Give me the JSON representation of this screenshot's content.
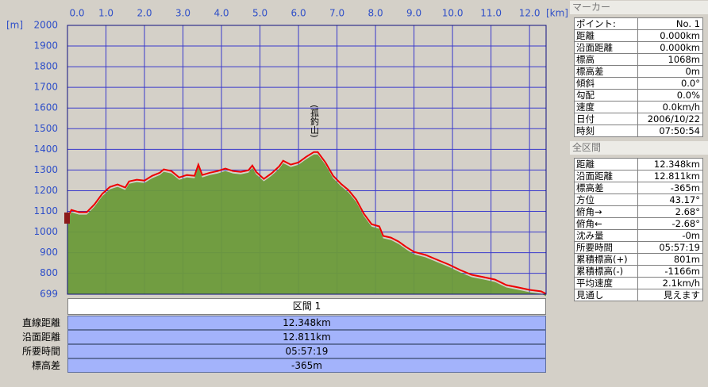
{
  "chart_data": {
    "type": "area",
    "x_unit": "[km]",
    "y_unit": "[m]",
    "x": [
      0,
      0.1,
      0.3,
      0.5,
      0.7,
      0.9,
      1.1,
      1.3,
      1.5,
      1.6,
      1.8,
      2.0,
      2.2,
      2.4,
      2.5,
      2.7,
      2.9,
      3.1,
      3.3,
      3.4,
      3.5,
      3.7,
      3.9,
      4.1,
      4.3,
      4.5,
      4.7,
      4.8,
      4.9,
      5.1,
      5.3,
      5.5,
      5.6,
      5.8,
      6.0,
      6.2,
      6.4,
      6.5,
      6.7,
      6.9,
      7.1,
      7.3,
      7.5,
      7.7,
      7.9,
      8.1,
      8.2,
      8.4,
      8.6,
      8.8,
      9.0,
      9.3,
      9.6,
      9.9,
      10.2,
      10.5,
      10.8,
      11.1,
      11.4,
      11.7,
      12.0,
      12.3,
      12.43
    ],
    "values": [
      1068,
      1107,
      1096,
      1096,
      1134,
      1184,
      1218,
      1230,
      1215,
      1245,
      1253,
      1249,
      1272,
      1287,
      1303,
      1295,
      1264,
      1276,
      1272,
      1326,
      1276,
      1287,
      1295,
      1307,
      1295,
      1291,
      1299,
      1322,
      1291,
      1257,
      1284,
      1318,
      1345,
      1326,
      1337,
      1364,
      1387,
      1387,
      1337,
      1272,
      1234,
      1203,
      1157,
      1088,
      1038,
      1027,
      981,
      973,
      954,
      927,
      904,
      889,
      866,
      843,
      816,
      793,
      782,
      770,
      743,
      732,
      720,
      713,
      701
    ],
    "line_color": "#ee0000",
    "fill_color": "#6b9a3a",
    "xlim": [
      0,
      12.43
    ],
    "ylim": [
      699,
      2000
    ],
    "xticks": [
      {
        "value": 0,
        "label": "0.0"
      },
      {
        "value": 1,
        "label": "1.0"
      },
      {
        "value": 2,
        "label": "2.0"
      },
      {
        "value": 3,
        "label": "3.0"
      },
      {
        "value": 4,
        "label": "4.0"
      },
      {
        "value": 5,
        "label": "5.0"
      },
      {
        "value": 6,
        "label": "6.0"
      },
      {
        "value": 7,
        "label": "7.0"
      },
      {
        "value": 8,
        "label": "8.0"
      },
      {
        "value": 9,
        "label": "9.0"
      },
      {
        "value": 10,
        "label": "10.0"
      },
      {
        "value": 11,
        "label": "11.0"
      },
      {
        "value": 12,
        "label": "12.0"
      }
    ],
    "yticks": [
      699,
      800,
      900,
      1000,
      1100,
      1200,
      1300,
      1400,
      1500,
      1600,
      1700,
      1800,
      1900,
      2000
    ],
    "grid": true,
    "annotations": [
      {
        "text": "(孤釣山)",
        "x": 6.4
      }
    ]
  },
  "segment_table": {
    "header": "区間 1",
    "rows": [
      [
        "直線距離",
        "12.348km"
      ],
      [
        "沿面距離",
        "12.811km"
      ],
      [
        "所要時間",
        "05:57:19"
      ],
      [
        "標高差",
        "-365m"
      ]
    ]
  },
  "marker_panel": {
    "title": "マーカー",
    "rows": [
      [
        "ポイント:",
        "No. 1"
      ],
      [
        "距離",
        "0.000km"
      ],
      [
        "沿面距離",
        "0.000km"
      ],
      [
        "標高",
        "1068m"
      ],
      [
        "標高差",
        "0m"
      ],
      [
        "傾斜",
        "0.0°"
      ],
      [
        "勾配",
        "0.0%"
      ],
      [
        "速度",
        "0.0km/h"
      ],
      [
        "日付",
        "2006/10/22"
      ],
      [
        "時刻",
        "07:50:54"
      ]
    ]
  },
  "summary_panel": {
    "title": "全区間",
    "rows": [
      [
        "距離",
        "12.348km"
      ],
      [
        "沿面距離",
        "12.811km"
      ],
      [
        "標高差",
        "-365m"
      ],
      [
        "方位",
        "43.17°"
      ],
      [
        "俯角→",
        "2.68°"
      ],
      [
        "俯角←",
        "-2.68°"
      ],
      [
        "沈み量",
        "-0m"
      ],
      [
        "所要時間",
        "05:57:19"
      ],
      [
        "累積標高(+)",
        "801m"
      ],
      [
        "累積標高(-)",
        "-1166m"
      ],
      [
        "平均速度",
        "2.1km/h"
      ],
      [
        "見通し",
        "見えます"
      ]
    ]
  }
}
